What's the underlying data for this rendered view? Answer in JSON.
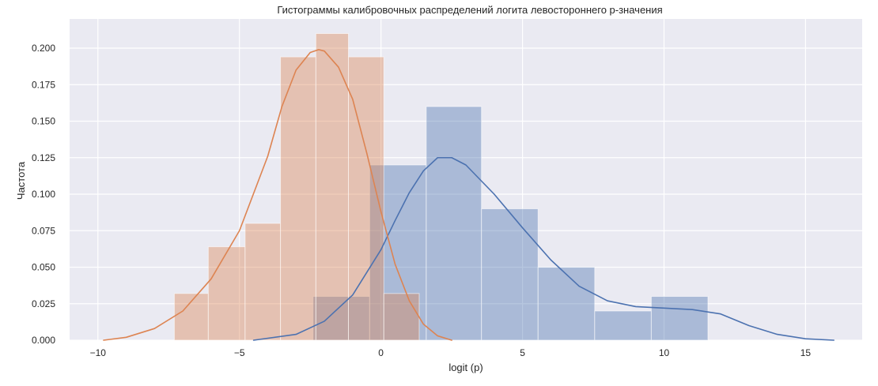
{
  "chart_data": {
    "type": "bar",
    "title": "Гистограммы калибровочных распределений логита левостороннего p-значения",
    "xlabel": "logit (p)",
    "ylabel": "Частота",
    "xlim": [
      -11,
      17
    ],
    "ylim": [
      0,
      0.22
    ],
    "xticks": [
      -10,
      -5,
      0,
      5,
      10,
      15
    ],
    "yticks": [
      0,
      0.025,
      0.05,
      0.075,
      0.1,
      0.125,
      0.15,
      0.175,
      0.2
    ],
    "grid": true,
    "legend": "none",
    "colors": {
      "background": "#eaeaf2",
      "grid": "#ffffff",
      "blue": "#4c72b0",
      "orange": "#dd8452"
    },
    "series": [
      {
        "kind": "histogram",
        "color": "#4c72b0",
        "bins": [
          {
            "x0": -2.4,
            "x1": -0.4,
            "y": 0.03
          },
          {
            "x0": -0.4,
            "x1": 1.6,
            "y": 0.12
          },
          {
            "x0": 1.6,
            "x1": 3.55,
            "y": 0.16
          },
          {
            "x0": 3.55,
            "x1": 5.55,
            "y": 0.09
          },
          {
            "x0": 5.55,
            "x1": 7.55,
            "y": 0.05
          },
          {
            "x0": 7.55,
            "x1": 9.55,
            "y": 0.02
          },
          {
            "x0": 9.55,
            "x1": 11.55,
            "y": 0.03
          }
        ]
      },
      {
        "kind": "histogram",
        "color": "#dd8452",
        "bins": [
          {
            "x0": -7.3,
            "x1": -6.1,
            "y": 0.032
          },
          {
            "x0": -6.1,
            "x1": -4.8,
            "y": 0.064
          },
          {
            "x0": -4.8,
            "x1": -3.55,
            "y": 0.08
          },
          {
            "x0": -3.55,
            "x1": -2.3,
            "y": 0.194
          },
          {
            "x0": -2.3,
            "x1": -1.15,
            "y": 0.21
          },
          {
            "x0": -1.15,
            "x1": 0.1,
            "y": 0.194
          },
          {
            "x0": 0.1,
            "x1": 1.35,
            "y": 0.032
          }
        ]
      },
      {
        "kind": "kde",
        "color": "#4c72b0",
        "x": [
          -4.5,
          -3,
          -2,
          -1,
          0,
          0.5,
          1,
          1.5,
          2,
          2.5,
          3,
          4,
          5,
          6,
          7,
          8,
          9,
          10,
          11,
          12,
          13,
          14,
          15,
          16
        ],
        "y": [
          0.0,
          0.004,
          0.013,
          0.031,
          0.062,
          0.082,
          0.101,
          0.116,
          0.125,
          0.125,
          0.12,
          0.1,
          0.077,
          0.055,
          0.037,
          0.027,
          0.023,
          0.022,
          0.021,
          0.018,
          0.01,
          0.004,
          0.001,
          0.0
        ]
      },
      {
        "kind": "kde",
        "color": "#dd8452",
        "x": [
          -9.8,
          -9,
          -8,
          -7,
          -6,
          -5,
          -4,
          -3.5,
          -3,
          -2.5,
          -2.2,
          -2,
          -1.5,
          -1,
          -0.5,
          0,
          0.5,
          1,
          1.5,
          2,
          2.5
        ],
        "y": [
          0.0,
          0.002,
          0.008,
          0.02,
          0.042,
          0.075,
          0.126,
          0.16,
          0.185,
          0.197,
          0.199,
          0.198,
          0.187,
          0.165,
          0.128,
          0.088,
          0.052,
          0.027,
          0.011,
          0.003,
          0.0
        ]
      }
    ]
  }
}
